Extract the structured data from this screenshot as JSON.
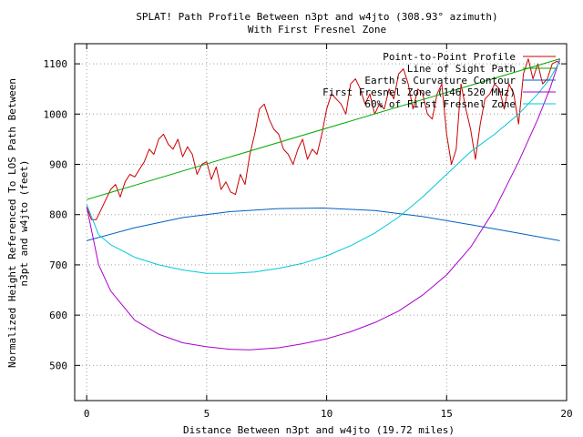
{
  "chart_data": {
    "type": "line",
    "title": "SPLAT! Path Profile Between n3pt and w4jto (308.93° azimuth)",
    "subtitle": "With First Fresnel Zone",
    "xlabel": "Distance Between n3pt and w4jto (19.72 miles)",
    "ylabel_line1": "Normalized Height Referenced To LOS Path Between",
    "ylabel_line2": "n3pt and w4jto (feet)",
    "xlim": [
      -0.5,
      20
    ],
    "ylim": [
      430,
      1140
    ],
    "xticks": [
      "0",
      "5",
      "10",
      "15",
      "20"
    ],
    "xtick_values": [
      0,
      5,
      10,
      15,
      20
    ],
    "yticks": [
      "500",
      "600",
      "700",
      "800",
      "900",
      "1000",
      "1100"
    ],
    "ytick_values": [
      500,
      600,
      700,
      800,
      900,
      1000,
      1100
    ],
    "grid": true,
    "legend_position": "top-right",
    "series": [
      {
        "name": "Point-to-Point Profile",
        "color": "#cc0000",
        "x": [
          0,
          0.2,
          0.4,
          0.6,
          0.8,
          1.0,
          1.2,
          1.4,
          1.6,
          1.8,
          2.0,
          2.2,
          2.4,
          2.6,
          2.8,
          3.0,
          3.2,
          3.4,
          3.6,
          3.8,
          4.0,
          4.2,
          4.4,
          4.6,
          4.8,
          5.0,
          5.2,
          5.4,
          5.6,
          5.8,
          6.0,
          6.2,
          6.4,
          6.6,
          6.8,
          7.0,
          7.2,
          7.4,
          7.6,
          7.8,
          8.0,
          8.2,
          8.4,
          8.6,
          8.8,
          9.0,
          9.2,
          9.4,
          9.6,
          9.8,
          10.0,
          10.2,
          10.4,
          10.6,
          10.8,
          11.0,
          11.2,
          11.4,
          11.6,
          11.8,
          12.0,
          12.2,
          12.4,
          12.6,
          12.8,
          13.0,
          13.2,
          13.4,
          13.6,
          13.8,
          14.0,
          14.2,
          14.4,
          14.6,
          14.8,
          15.0,
          15.2,
          15.4,
          15.6,
          15.8,
          16.0,
          16.2,
          16.4,
          16.6,
          16.8,
          17.0,
          17.2,
          17.4,
          17.6,
          17.8,
          18.0,
          18.2,
          18.4,
          18.6,
          18.8,
          19.0,
          19.2,
          19.4,
          19.6,
          19.72
        ],
        "y": [
          815,
          790,
          790,
          810,
          830,
          850,
          860,
          835,
          865,
          880,
          875,
          890,
          905,
          930,
          920,
          950,
          960,
          940,
          930,
          950,
          915,
          935,
          920,
          880,
          900,
          905,
          870,
          895,
          850,
          865,
          845,
          840,
          880,
          860,
          920,
          960,
          1010,
          1020,
          990,
          970,
          960,
          930,
          920,
          900,
          930,
          950,
          910,
          930,
          920,
          960,
          1010,
          1040,
          1030,
          1020,
          1000,
          1060,
          1070,
          1050,
          1020,
          1040,
          1000,
          1020,
          1010,
          1050,
          1030,
          1080,
          1090,
          1060,
          1010,
          1050,
          1040,
          1000,
          990,
          1040,
          1060,
          960,
          900,
          930,
          1060,
          1010,
          970,
          910,
          980,
          1030,
          1040,
          1060,
          1050,
          1010,
          1060,
          1040,
          980,
          1080,
          1110,
          1070,
          1100,
          1060,
          1070,
          1100,
          1105,
          1100
        ]
      },
      {
        "name": "Line of Sight Path",
        "color": "#00aa00",
        "x": [
          0,
          19.72
        ],
        "y": [
          830,
          1110
        ]
      },
      {
        "name": "Earth's Curvature Contour",
        "color": "#0060c0",
        "x": [
          0,
          2,
          4,
          6,
          8,
          9.86,
          12,
          14,
          16,
          18,
          19.72
        ],
        "y": [
          748,
          774,
          794,
          806,
          812,
          813,
          808,
          796,
          780,
          763,
          748
        ]
      },
      {
        "name": "First Fresnel Zone (146.520 MHz)",
        "color": "#aa00cc",
        "x": [
          0,
          0.5,
          1,
          2,
          3,
          4,
          5,
          6,
          6.8,
          8,
          9,
          10,
          11,
          12,
          13,
          14,
          15,
          16,
          17,
          18,
          18.8,
          19.3,
          19.72
        ],
        "y": [
          815,
          700,
          648,
          590,
          562,
          545,
          537,
          532,
          531,
          535,
          543,
          553,
          567,
          585,
          608,
          640,
          680,
          735,
          810,
          905,
          990,
          1050,
          1110
        ]
      },
      {
        "name": "60% of First Fresnel Zone",
        "color": "#00c8d8",
        "x": [
          0,
          0.5,
          1,
          2,
          3,
          4,
          5,
          6,
          7,
          8,
          9,
          10,
          11,
          12,
          13,
          14,
          15,
          16,
          17,
          18,
          18.8,
          19.3,
          19.72
        ],
        "y": [
          820,
          760,
          740,
          715,
          700,
          690,
          683,
          683,
          686,
          693,
          703,
          718,
          738,
          763,
          795,
          835,
          880,
          925,
          960,
          1000,
          1040,
          1070,
          1105
        ]
      }
    ]
  }
}
